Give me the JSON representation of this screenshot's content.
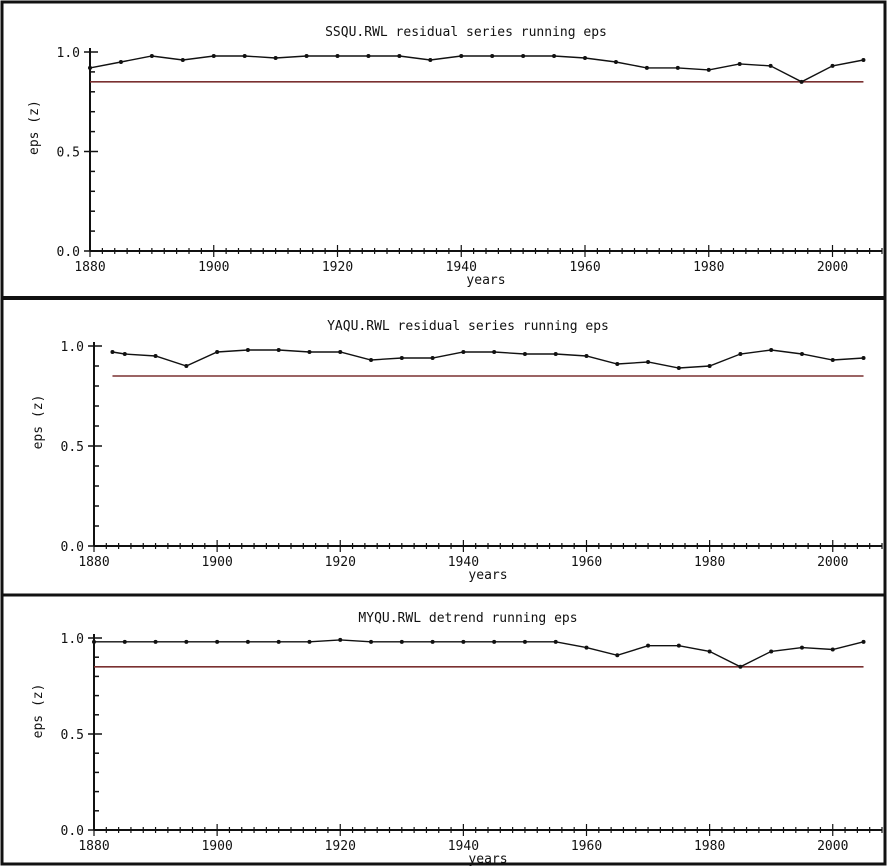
{
  "chart_data": [
    {
      "type": "line",
      "title": "SSQU.RWL residual series running eps",
      "xlabel": "years",
      "ylabel": "eps (z)",
      "xlim": [
        1880,
        2008
      ],
      "ylim": [
        0.0,
        1.0
      ],
      "xticks": [
        1880,
        1900,
        1920,
        1940,
        1960,
        1980,
        2000
      ],
      "yticks": [
        0.0,
        0.5,
        1.0
      ],
      "ytick_labels": [
        "0.0",
        "0.5",
        "1.0"
      ],
      "threshold": 0.85,
      "x_range_threshold": [
        1880,
        2005
      ],
      "series": [
        {
          "x": [
            1880,
            1885,
            1890,
            1895,
            1900,
            1905,
            1910,
            1915,
            1920,
            1925,
            1930,
            1935,
            1940,
            1945,
            1950,
            1955,
            1960,
            1965,
            1970,
            1975,
            1980,
            1985,
            1990,
            1995,
            2000,
            2005
          ],
          "y": [
            0.92,
            0.95,
            0.98,
            0.96,
            0.98,
            0.98,
            0.97,
            0.98,
            0.98,
            0.98,
            0.98,
            0.96,
            0.98,
            0.98,
            0.98,
            0.98,
            0.97,
            0.95,
            0.92,
            0.92,
            0.91,
            0.94,
            0.93,
            0.85,
            0.93,
            0.96
          ]
        }
      ],
      "colors": {
        "line": "#111111",
        "threshold": "#7a3030"
      }
    },
    {
      "type": "line",
      "title": "YAQU.RWL residual series running eps",
      "xlabel": "years",
      "ylabel": "eps (z)",
      "xlim": [
        1880,
        2008
      ],
      "ylim": [
        0.0,
        1.0
      ],
      "xticks": [
        1880,
        1900,
        1920,
        1940,
        1960,
        1980,
        2000
      ],
      "yticks": [
        0.0,
        0.5,
        1.0
      ],
      "ytick_labels": [
        "0.0",
        "0.5",
        "1.0"
      ],
      "threshold": 0.85,
      "x_range_threshold": [
        1883,
        2005
      ],
      "series": [
        {
          "x": [
            1883,
            1885,
            1890,
            1895,
            1900,
            1905,
            1910,
            1915,
            1920,
            1925,
            1930,
            1935,
            1940,
            1945,
            1950,
            1955,
            1960,
            1965,
            1970,
            1975,
            1980,
            1985,
            1990,
            1995,
            2000,
            2005
          ],
          "y": [
            0.97,
            0.96,
            0.95,
            0.9,
            0.97,
            0.98,
            0.98,
            0.97,
            0.97,
            0.93,
            0.94,
            0.94,
            0.97,
            0.97,
            0.96,
            0.96,
            0.95,
            0.91,
            0.92,
            0.89,
            0.9,
            0.96,
            0.98,
            0.96,
            0.93,
            0.94
          ]
        }
      ],
      "colors": {
        "line": "#111111",
        "threshold": "#7a3030"
      }
    },
    {
      "type": "line",
      "title": "MYQU.RWL detrend running eps",
      "xlabel": "years",
      "ylabel": "eps (z)",
      "xlim": [
        1880,
        2008
      ],
      "ylim": [
        0.0,
        1.0
      ],
      "xticks": [
        1880,
        1900,
        1920,
        1940,
        1960,
        1980,
        2000
      ],
      "yticks": [
        0.0,
        0.5,
        1.0
      ],
      "ytick_labels": [
        "0.0",
        "0.5",
        "1.0"
      ],
      "threshold": 0.85,
      "x_range_threshold": [
        1880,
        2005
      ],
      "series": [
        {
          "x": [
            1880,
            1885,
            1890,
            1895,
            1900,
            1905,
            1910,
            1915,
            1920,
            1925,
            1930,
            1935,
            1940,
            1945,
            1950,
            1955,
            1960,
            1965,
            1970,
            1975,
            1980,
            1985,
            1990,
            1995,
            2000,
            2005
          ],
          "y": [
            0.98,
            0.98,
            0.98,
            0.98,
            0.98,
            0.98,
            0.98,
            0.98,
            0.99,
            0.98,
            0.98,
            0.98,
            0.98,
            0.98,
            0.98,
            0.98,
            0.95,
            0.91,
            0.96,
            0.96,
            0.93,
            0.85,
            0.93,
            0.95,
            0.94,
            0.98
          ]
        }
      ],
      "colors": {
        "line": "#111111",
        "threshold": "#7a3030"
      }
    }
  ]
}
